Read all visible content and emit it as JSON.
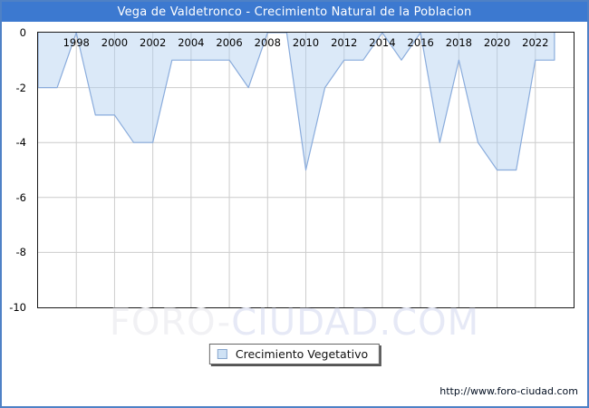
{
  "header": {
    "title": "Vega de Valdetronco - Crecimiento Natural de la Poblacion"
  },
  "chart_data": {
    "type": "area",
    "title": "Vega de Valdetronco - Crecimiento Natural de la Poblacion",
    "x": [
      1996,
      1997,
      1998,
      1999,
      2000,
      2001,
      2002,
      2003,
      2004,
      2005,
      2006,
      2007,
      2008,
      2009,
      2010,
      2011,
      2012,
      2013,
      2014,
      2015,
      2016,
      2017,
      2018,
      2019,
      2020,
      2021,
      2022,
      2023
    ],
    "series": [
      {
        "name": "Crecimiento Vegetativo",
        "values": [
          -2,
          -2,
          0,
          -3,
          -3,
          -4,
          -4,
          -1,
          -1,
          -1,
          -1,
          -2,
          0,
          0,
          -5,
          -2,
          -1,
          -1,
          0,
          -1,
          0,
          -4,
          -1,
          -4,
          -5,
          -5,
          -1,
          -1
        ]
      }
    ],
    "xlabel": "",
    "ylabel": "",
    "x_axis_min": 1996,
    "x_axis_max": 2024,
    "xtick_years": [
      1998,
      2000,
      2002,
      2004,
      2006,
      2008,
      2010,
      2012,
      2014,
      2016,
      2018,
      2020,
      2022
    ],
    "ylim": [
      -10,
      0
    ],
    "yticks": [
      0,
      -2,
      -4,
      -6,
      -8,
      -10
    ],
    "grid": true,
    "legend_position": "bottom-center"
  },
  "legend": {
    "label": "Crecimiento Vegetativo"
  },
  "watermark": {
    "part1": "FORO-",
    "part2": "CIUDAD.COM"
  },
  "footer": {
    "url": "http://www.foro-ciudad.com"
  },
  "colors": {
    "header_bg": "#3C79D0",
    "outer_border": "#4E81C6",
    "series_line": "#8AACDC",
    "series_fill": "rgba(176,207,240,0.45)",
    "gridline": "#CCCCCC",
    "plot_border": "#1a1a1a",
    "legend_swatch": "#CFE2F5",
    "watermark_text": "#EAECF5"
  }
}
